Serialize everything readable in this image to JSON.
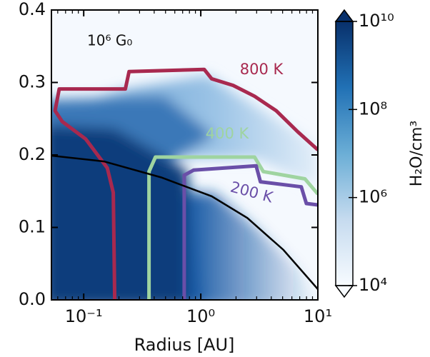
{
  "chart_data": {
    "type": "contour",
    "annotation": "10⁶ G₀",
    "xlabel": "Radius [AU]",
    "xscale": "log",
    "xlim": [
      0.053,
      10
    ],
    "xticks": [
      {
        "value": 0.1,
        "label": "10⁻¹"
      },
      {
        "value": 1,
        "label": "10⁰"
      },
      {
        "value": 10,
        "label": "10¹"
      }
    ],
    "ylim": [
      0,
      0.4
    ],
    "yticks": [
      {
        "value": 0,
        "label": "0.0"
      },
      {
        "value": 0.1,
        "label": "0.1"
      },
      {
        "value": 0.2,
        "label": "0.2"
      },
      {
        "value": 0.3,
        "label": "0.3"
      },
      {
        "value": 0.4,
        "label": "0.4"
      }
    ],
    "colorbar": {
      "label": "H₂O/cm³",
      "scale": "log",
      "clim": [
        10000,
        10000000000
      ],
      "ticks": [
        {
          "value": 10000,
          "label": "10⁴"
        },
        {
          "value": 1000000,
          "label": "10⁶"
        },
        {
          "value": 100000000,
          "label": "10⁸"
        },
        {
          "value": 10000000000,
          "label": "10¹⁰"
        }
      ],
      "colormap": [
        "#f7fbff",
        "#c6dbef",
        "#6baed6",
        "#2171b5",
        "#08306b"
      ]
    },
    "series": [
      {
        "name": "800 K",
        "color": "#a8294f",
        "x": [
          0.184,
          0.179,
          0.159,
          0.104,
          0.0655,
          0.0569,
          0.0618,
          0.227,
          0.244,
          1.07,
          1.24,
          1.89,
          2.88,
          4.41,
          6.73,
          10
        ],
        "values": [
          0,
          0.148,
          0.182,
          0.222,
          0.246,
          0.261,
          0.291,
          0.291,
          0.315,
          0.318,
          0.305,
          0.296,
          0.281,
          0.261,
          0.232,
          0.207
        ]
      },
      {
        "name": "400 K",
        "color": "#9fd4a0",
        "x": [
          0.361,
          0.361,
          0.41,
          2.88,
          3.42,
          7.76,
          10
        ],
        "values": [
          0,
          0.177,
          0.197,
          0.197,
          0.177,
          0.167,
          0.146
        ]
      },
      {
        "name": "200 K",
        "color": "#6a4fa8",
        "x": [
          0.722,
          0.722,
          0.868,
          2.97,
          3.23,
          7.22,
          7.98,
          10
        ],
        "values": [
          0,
          0.172,
          0.179,
          0.185,
          0.163,
          0.156,
          0.133,
          0.131
        ]
      }
    ],
    "curve": {
      "color": "#000000",
      "x": [
        0.053,
        0.149,
        0.46,
        1.24,
        2.5,
        5.08,
        10
      ],
      "values": [
        0.199,
        0.191,
        0.169,
        0.143,
        0.113,
        0.069,
        0.0148
      ]
    }
  }
}
